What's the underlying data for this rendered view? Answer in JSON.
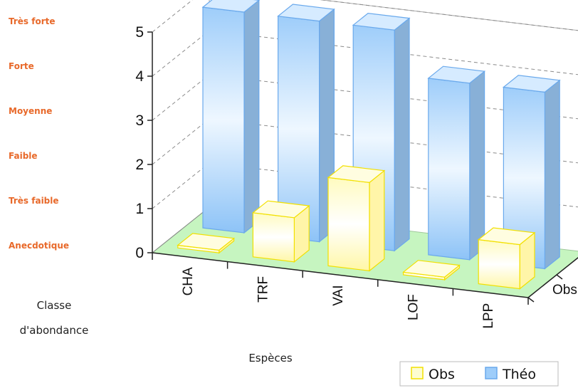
{
  "abundance_classes": [
    "Très forte",
    "Forte",
    "Moyenne",
    "Faible",
    "Très faible",
    "Anecdotique"
  ],
  "abundance_axis_label_line1": "Classe",
  "abundance_axis_label_line2": "d'abondance",
  "colors": {
    "obs": "#fdfdd0",
    "obs_edge": "#f2e000",
    "theo": "#9ecdfa",
    "theo_edge": "#6aa9ec",
    "floor": "#c6f5c0",
    "abundance_text": "#e8692a"
  },
  "chart_data": {
    "type": "bar",
    "variant": "3d-column",
    "xlabel": "Espèces",
    "categories": [
      "CHA",
      "TRF",
      "VAI",
      "LOF",
      "LPP"
    ],
    "depth_labels": [
      "Obs"
    ],
    "yticks": [
      0,
      1,
      2,
      3,
      4,
      5
    ],
    "ylim": [
      0,
      5
    ],
    "grid": true,
    "legend_position": "bottom-right",
    "series": [
      {
        "name": "Obs",
        "values": [
          0,
          1,
          2,
          0,
          1
        ],
        "color": "#fdfdd0"
      },
      {
        "name": "Théo",
        "values": [
          5,
          5,
          5,
          4,
          4
        ],
        "color": "#9ecdfa"
      }
    ]
  }
}
